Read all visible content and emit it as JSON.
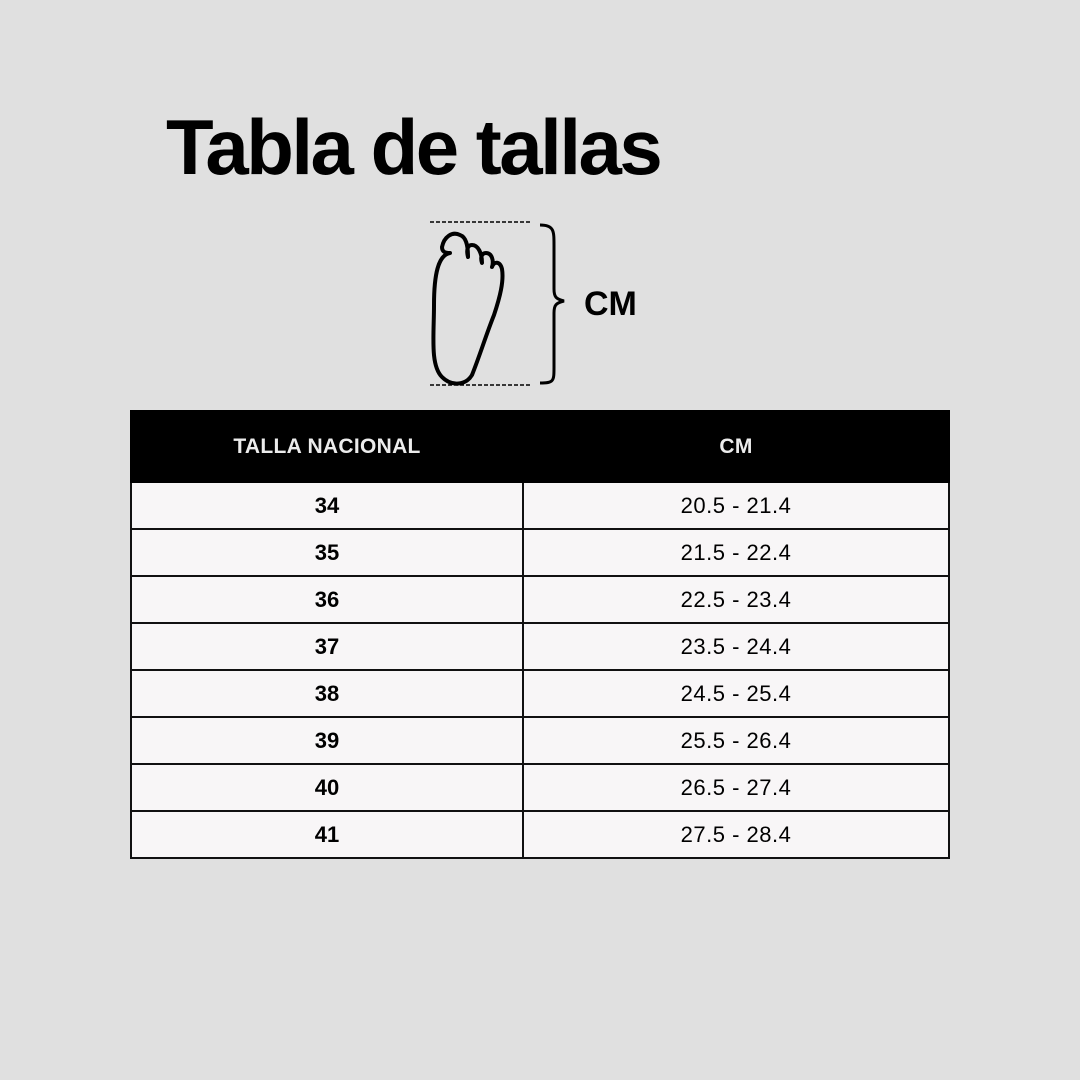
{
  "title": "Tabla de tallas",
  "diagram": {
    "icon": "foot-outline-icon",
    "measure_label": "CM"
  },
  "table": {
    "headers": [
      "TALLA NACIONAL",
      "CM"
    ],
    "rows": [
      {
        "size": "34",
        "cm": "20.5 - 21.4"
      },
      {
        "size": "35",
        "cm": "21.5 - 22.4"
      },
      {
        "size": "36",
        "cm": "22.5 - 23.4"
      },
      {
        "size": "37",
        "cm": "23.5 - 24.4"
      },
      {
        "size": "38",
        "cm": "24.5 - 25.4"
      },
      {
        "size": "39",
        "cm": "25.5 - 26.4"
      },
      {
        "size": "40",
        "cm": "26.5 - 27.4"
      },
      {
        "size": "41",
        "cm": "27.5 - 28.4"
      }
    ]
  },
  "colors": {
    "background": "#e0e0e0",
    "header": "#000000",
    "cell": "#f8f6f7"
  }
}
